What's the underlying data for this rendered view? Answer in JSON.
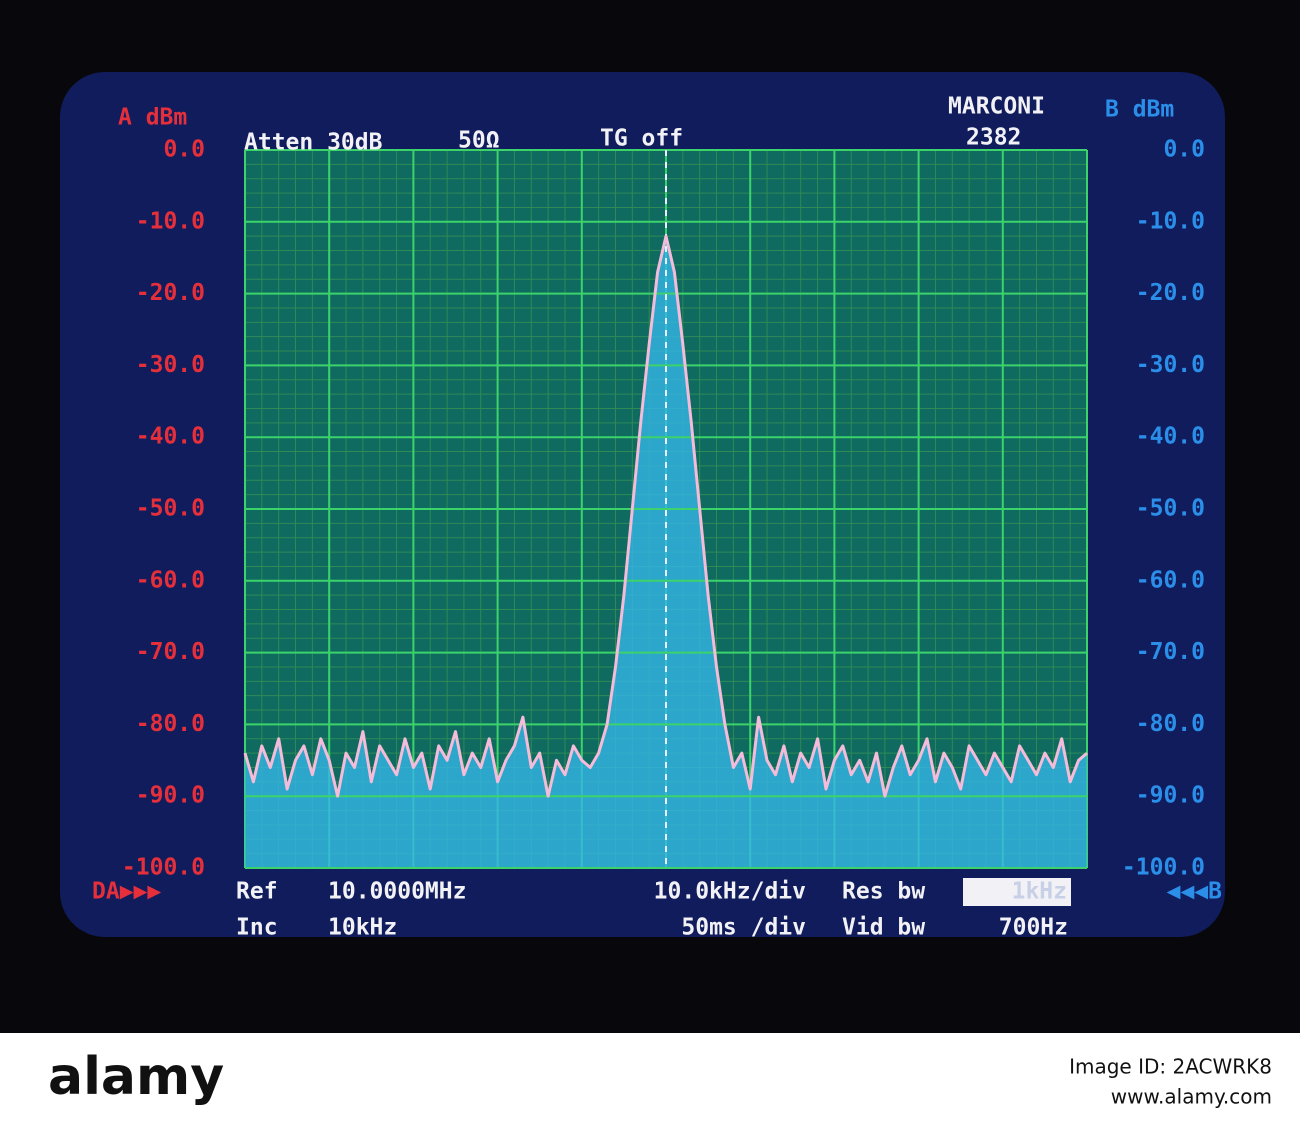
{
  "header": {
    "atten": "Atten 30dB",
    "impedance": "50Ω",
    "tracking": "TG off",
    "brand": "MARCONI",
    "model": "2382"
  },
  "footer": {
    "ref_label": "Ref",
    "ref_value": "10.0000MHz",
    "inc_label": "Inc",
    "inc_value": "10kHz",
    "span": "10.0kHz/div",
    "sweep": "50ms /div",
    "res_label": "Res bw",
    "res_value": "1kHz",
    "vid_label": "Vid bw",
    "vid_value": "700Hz",
    "left_marker": "DA▶▶▶",
    "right_marker": "◀◀◀B"
  },
  "watermark": {
    "brand": "alamy",
    "image_id": "Image ID: 2ACWRK8",
    "url": "www.alamy.com"
  },
  "chart_data": {
    "type": "line",
    "y_label": "A dBm",
    "y2_label": "B dBm",
    "ylim": [
      -100,
      0
    ],
    "yticks": [
      {
        "value": 0,
        "label": "0.0"
      },
      {
        "value": -10,
        "label": "-10.0"
      },
      {
        "value": -20,
        "label": "-20.0"
      },
      {
        "value": -30,
        "label": "-30.0"
      },
      {
        "value": -40,
        "label": "-40.0"
      },
      {
        "value": -50,
        "label": "-50.0"
      },
      {
        "value": -60,
        "label": "-60.0"
      },
      {
        "value": -70,
        "label": "-70.0"
      },
      {
        "value": -80,
        "label": "-80.0"
      },
      {
        "value": -90,
        "label": "-90.0"
      },
      {
        "value": -100,
        "label": "-100.0"
      }
    ],
    "y2lim": [
      -100,
      0
    ],
    "y2ticks": [
      {
        "value": 0,
        "label": "0.0"
      },
      {
        "value": -10,
        "label": "-10.0"
      },
      {
        "value": -20,
        "label": "-20.0"
      },
      {
        "value": -30,
        "label": "-30.0"
      },
      {
        "value": -40,
        "label": "-40.0"
      },
      {
        "value": -50,
        "label": "-50.0"
      },
      {
        "value": -60,
        "label": "-60.0"
      },
      {
        "value": -70,
        "label": "-70.0"
      },
      {
        "value": -80,
        "label": "-80.0"
      },
      {
        "value": -90,
        "label": "-90.0"
      },
      {
        "value": -100,
        "label": "-100.0"
      }
    ],
    "grid": true,
    "color": "#f4bcd9",
    "values": [
      -84,
      -88,
      -83,
      -86,
      -82,
      -89,
      -85,
      -83,
      -87,
      -82,
      -85,
      -90,
      -84,
      -86,
      -81,
      -88,
      -83,
      -85,
      -87,
      -82,
      -86,
      -84,
      -89,
      -83,
      -85,
      -81,
      -87,
      -84,
      -86,
      -82,
      -88,
      -85,
      -83,
      -79,
      -86,
      -84,
      -90,
      -85,
      -87,
      -83,
      -85,
      -86,
      -84,
      -80,
      -72,
      -62,
      -50,
      -38,
      -27,
      -17,
      -12,
      -17,
      -27,
      -38,
      -50,
      -62,
      -72,
      -80,
      -86,
      -84,
      -89,
      -79,
      -85,
      -87,
      -83,
      -88,
      -84,
      -86,
      -82,
      -89,
      -85,
      -83,
      -87,
      -85,
      -88,
      -84,
      -90,
      -86,
      -83,
      -87,
      -85,
      -82,
      -88,
      -84,
      -86,
      -89,
      -83,
      -85,
      -87,
      -84,
      -86,
      -88,
      -83,
      -85,
      -87,
      -84,
      -86,
      -82,
      -88,
      -85,
      -84
    ]
  }
}
